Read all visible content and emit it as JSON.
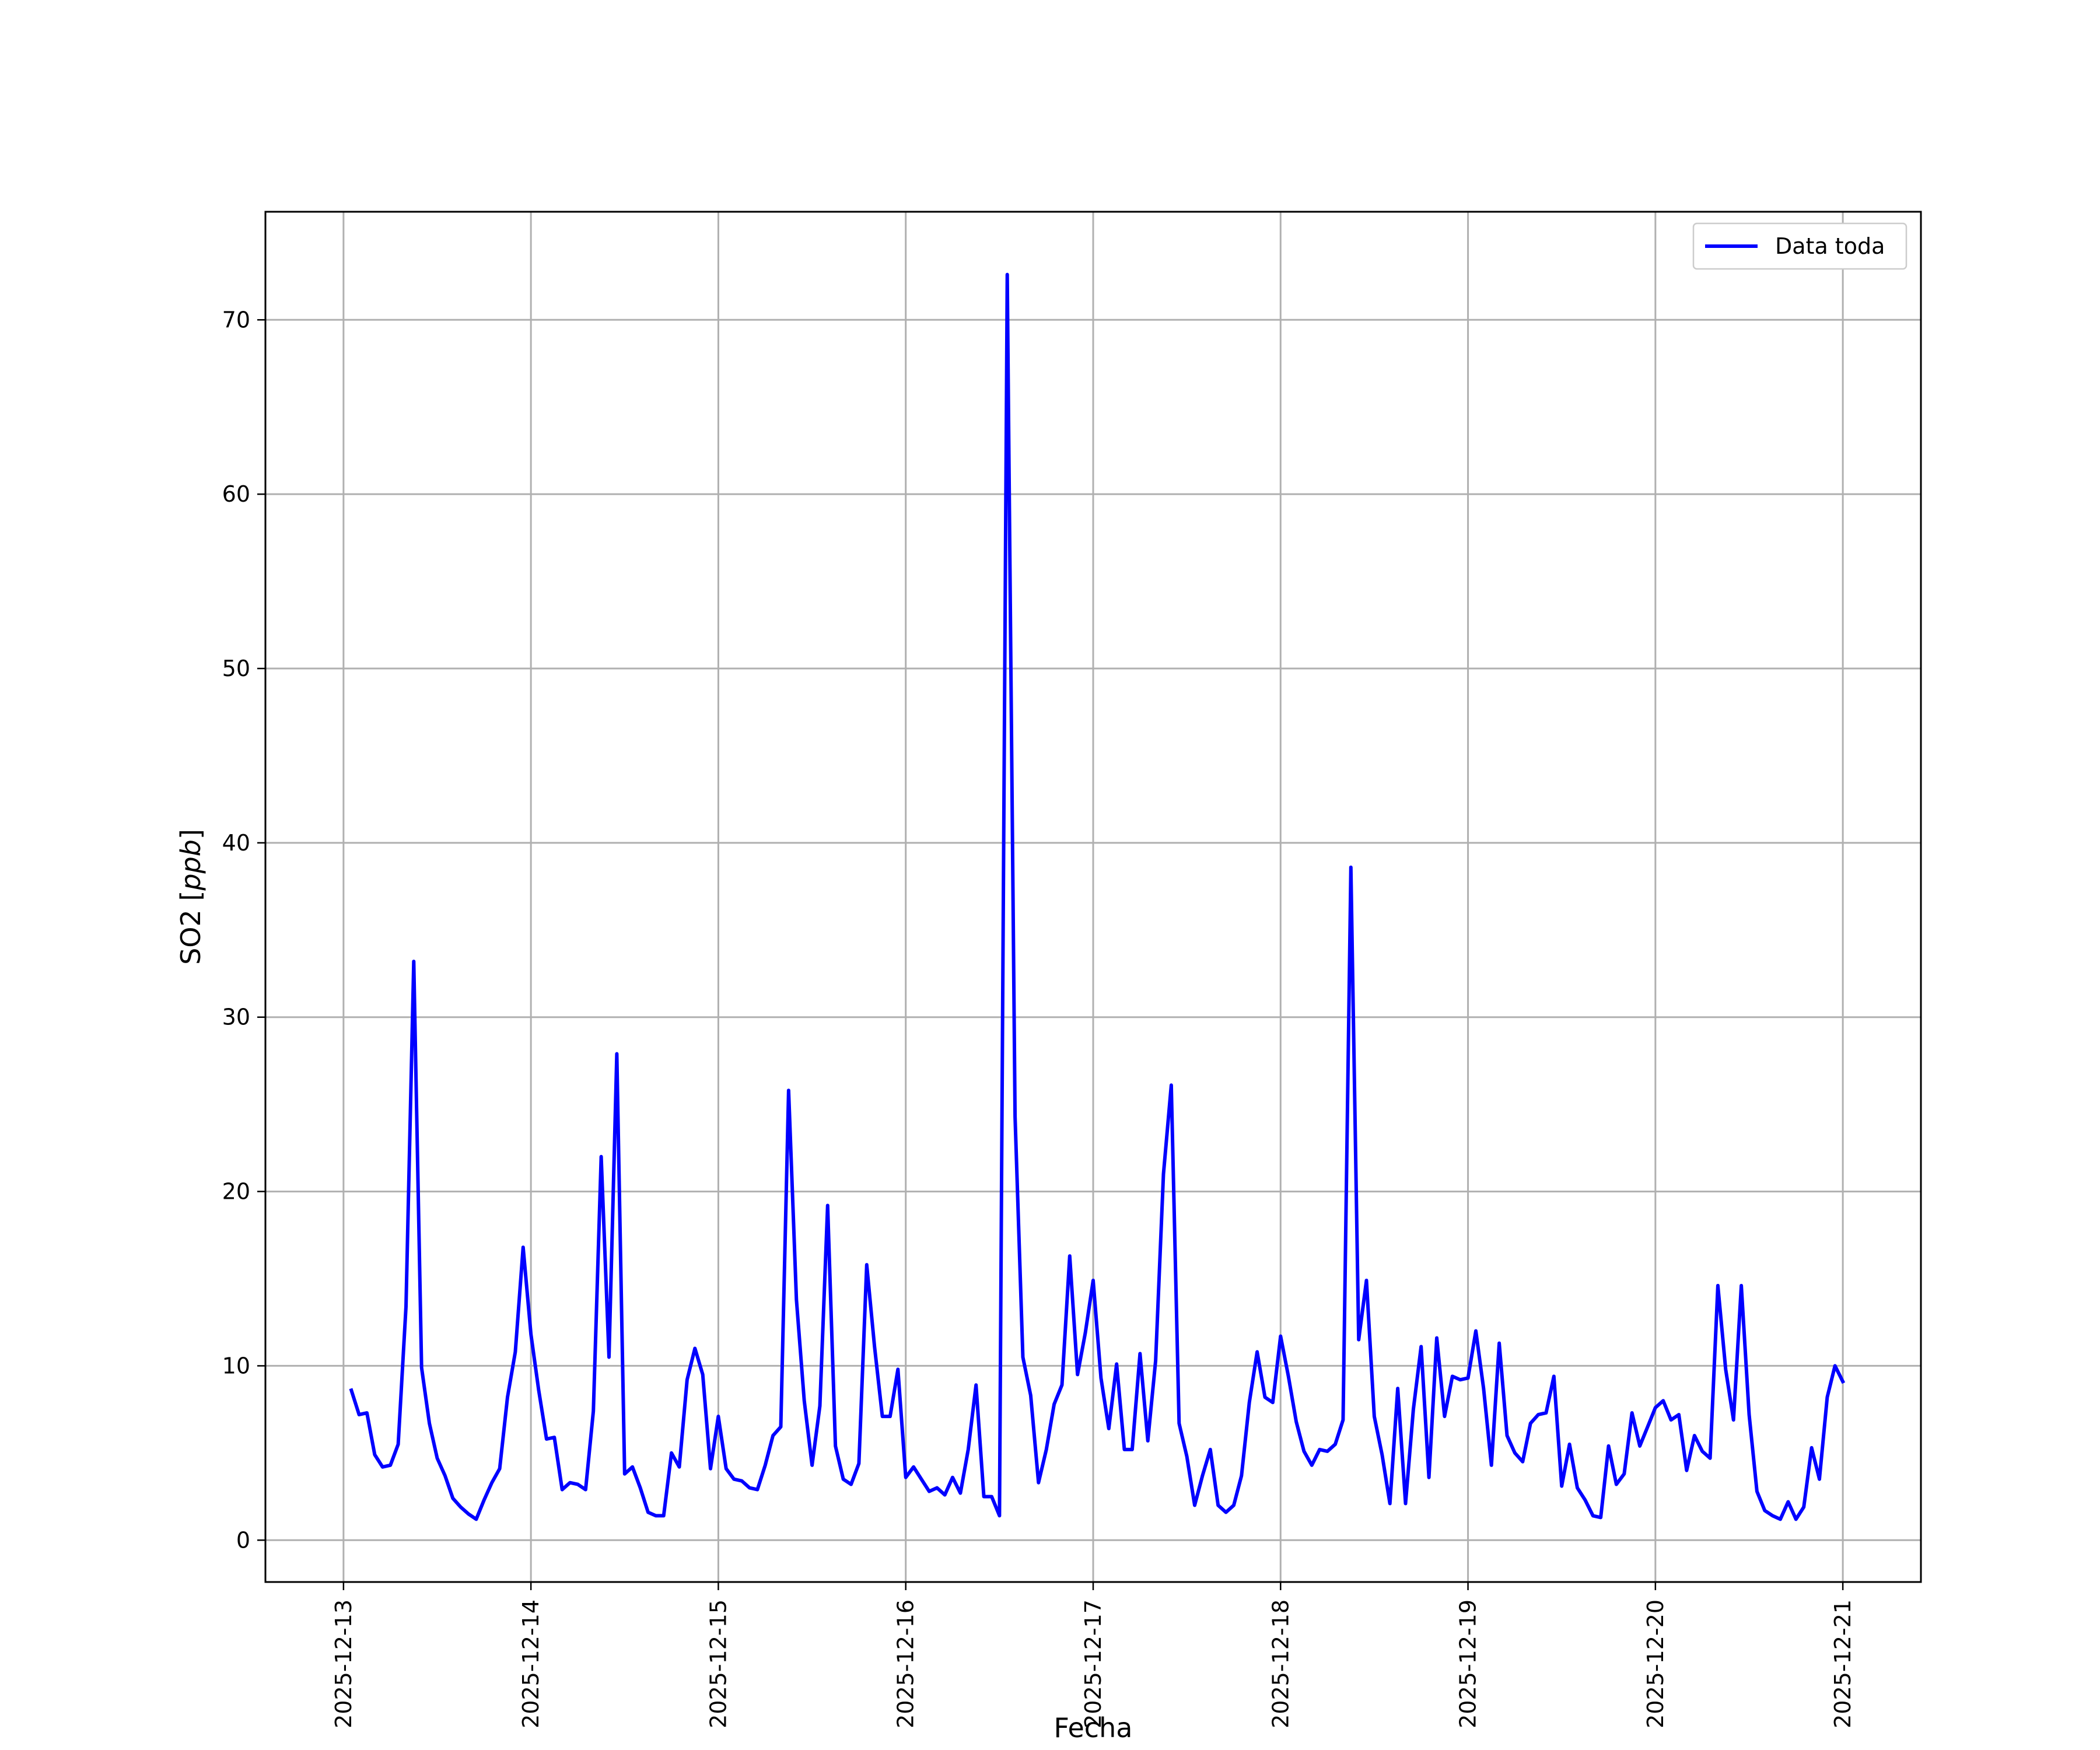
{
  "chart_data": {
    "type": "line",
    "xlabel": "Fecha",
    "ylabel": "SO2 [ppb]",
    "ylabel_main": "SO2 [",
    "ylabel_unit": "ppb",
    "ylabel_close": "]",
    "xlim": [
      "2025-12-12 14:00",
      "2025-12-21 10:00"
    ],
    "ylim": [
      -2.4,
      76.2
    ],
    "grid": true,
    "legend_position": "top-right",
    "x_ticks": [
      "2025-12-13",
      "2025-12-14",
      "2025-12-15",
      "2025-12-16",
      "2025-12-17",
      "2025-12-18",
      "2025-12-19",
      "2025-12-20",
      "2025-12-21"
    ],
    "y_ticks": [
      0,
      10,
      20,
      30,
      40,
      50,
      60,
      70
    ],
    "colors": {
      "series": "#0000ff",
      "grid": "#b0b0b0"
    },
    "series": [
      {
        "name": "Data toda",
        "x": [
          "2025-12-13 01:00",
          "2025-12-13 02:00",
          "2025-12-13 03:00",
          "2025-12-13 04:00",
          "2025-12-13 05:00",
          "2025-12-13 06:00",
          "2025-12-13 07:00",
          "2025-12-13 08:00",
          "2025-12-13 09:00",
          "2025-12-13 10:00",
          "2025-12-13 11:00",
          "2025-12-13 12:00",
          "2025-12-13 13:00",
          "2025-12-13 14:00",
          "2025-12-13 15:00",
          "2025-12-13 16:00",
          "2025-12-13 17:00",
          "2025-12-13 18:00",
          "2025-12-13 19:00",
          "2025-12-13 20:00",
          "2025-12-13 21:00",
          "2025-12-13 22:00",
          "2025-12-13 23:00",
          "2025-12-14 00:00",
          "2025-12-14 01:00",
          "2025-12-14 02:00",
          "2025-12-14 03:00",
          "2025-12-14 04:00",
          "2025-12-14 05:00",
          "2025-12-14 06:00",
          "2025-12-14 07:00",
          "2025-12-14 08:00",
          "2025-12-14 09:00",
          "2025-12-14 10:00",
          "2025-12-14 11:00",
          "2025-12-14 12:00",
          "2025-12-14 13:00",
          "2025-12-14 14:00",
          "2025-12-14 15:00",
          "2025-12-14 16:00",
          "2025-12-14 17:00",
          "2025-12-14 18:00",
          "2025-12-14 19:00",
          "2025-12-14 20:00",
          "2025-12-14 21:00",
          "2025-12-14 22:00",
          "2025-12-14 23:00",
          "2025-12-15 00:00",
          "2025-12-15 01:00",
          "2025-12-15 02:00",
          "2025-12-15 03:00",
          "2025-12-15 04:00",
          "2025-12-15 05:00",
          "2025-12-15 06:00",
          "2025-12-15 07:00",
          "2025-12-15 08:00",
          "2025-12-15 09:00",
          "2025-12-15 10:00",
          "2025-12-15 11:00",
          "2025-12-15 12:00",
          "2025-12-15 13:00",
          "2025-12-15 14:00",
          "2025-12-15 15:00",
          "2025-12-15 16:00",
          "2025-12-15 17:00",
          "2025-12-15 18:00",
          "2025-12-15 19:00",
          "2025-12-15 20:00",
          "2025-12-15 21:00",
          "2025-12-15 22:00",
          "2025-12-15 23:00",
          "2025-12-16 00:00",
          "2025-12-16 01:00",
          "2025-12-16 02:00",
          "2025-12-16 03:00",
          "2025-12-16 04:00",
          "2025-12-16 05:00",
          "2025-12-16 06:00",
          "2025-12-16 07:00",
          "2025-12-16 08:00",
          "2025-12-16 09:00",
          "2025-12-16 10:00",
          "2025-12-16 11:00",
          "2025-12-16 12:00",
          "2025-12-16 13:00",
          "2025-12-16 14:00",
          "2025-12-16 15:00",
          "2025-12-16 16:00",
          "2025-12-16 17:00",
          "2025-12-16 18:00",
          "2025-12-16 19:00",
          "2025-12-16 20:00",
          "2025-12-16 21:00",
          "2025-12-16 22:00",
          "2025-12-16 23:00",
          "2025-12-17 00:00",
          "2025-12-17 01:00",
          "2025-12-17 02:00",
          "2025-12-17 03:00",
          "2025-12-17 04:00",
          "2025-12-17 05:00",
          "2025-12-17 06:00",
          "2025-12-17 07:00",
          "2025-12-17 08:00",
          "2025-12-17 09:00",
          "2025-12-17 10:00",
          "2025-12-17 11:00",
          "2025-12-17 12:00",
          "2025-12-17 13:00",
          "2025-12-17 14:00",
          "2025-12-17 15:00",
          "2025-12-17 16:00",
          "2025-12-17 17:00",
          "2025-12-17 18:00",
          "2025-12-17 19:00",
          "2025-12-17 20:00",
          "2025-12-17 21:00",
          "2025-12-17 22:00",
          "2025-12-17 23:00",
          "2025-12-18 00:00",
          "2025-12-18 01:00",
          "2025-12-18 02:00",
          "2025-12-18 03:00",
          "2025-12-18 04:00",
          "2025-12-18 05:00",
          "2025-12-18 06:00",
          "2025-12-18 07:00",
          "2025-12-18 08:00",
          "2025-12-18 09:00",
          "2025-12-18 10:00",
          "2025-12-18 11:00",
          "2025-12-18 12:00",
          "2025-12-18 13:00",
          "2025-12-18 14:00",
          "2025-12-18 15:00",
          "2025-12-18 16:00",
          "2025-12-18 17:00",
          "2025-12-18 18:00",
          "2025-12-18 19:00",
          "2025-12-18 20:00",
          "2025-12-18 21:00",
          "2025-12-18 22:00",
          "2025-12-18 23:00",
          "2025-12-19 00:00",
          "2025-12-19 01:00",
          "2025-12-19 02:00",
          "2025-12-19 03:00",
          "2025-12-19 04:00",
          "2025-12-19 05:00",
          "2025-12-19 06:00",
          "2025-12-19 07:00",
          "2025-12-19 08:00",
          "2025-12-19 09:00",
          "2025-12-19 10:00",
          "2025-12-19 11:00",
          "2025-12-19 12:00",
          "2025-12-19 13:00",
          "2025-12-19 14:00",
          "2025-12-19 15:00",
          "2025-12-19 16:00",
          "2025-12-19 17:00",
          "2025-12-19 18:00",
          "2025-12-19 19:00",
          "2025-12-19 20:00",
          "2025-12-19 21:00",
          "2025-12-19 22:00",
          "2025-12-19 23:00",
          "2025-12-20 00:00",
          "2025-12-20 01:00",
          "2025-12-20 02:00",
          "2025-12-20 03:00",
          "2025-12-20 04:00",
          "2025-12-20 05:00",
          "2025-12-20 06:00",
          "2025-12-20 07:00",
          "2025-12-20 08:00",
          "2025-12-20 09:00",
          "2025-12-20 10:00",
          "2025-12-20 11:00",
          "2025-12-20 12:00",
          "2025-12-20 13:00",
          "2025-12-20 14:00",
          "2025-12-20 15:00",
          "2025-12-20 16:00",
          "2025-12-20 17:00",
          "2025-12-20 18:00",
          "2025-12-20 19:00",
          "2025-12-20 20:00",
          "2025-12-20 21:00",
          "2025-12-20 22:00",
          "2025-12-20 23:00",
          "2025-12-21 00:00"
        ],
        "y": [
          8.6,
          7.2,
          7.3,
          4.9,
          4.2,
          4.3,
          5.5,
          13.4,
          33.2,
          9.9,
          6.7,
          4.7,
          3.7,
          2.4,
          1.9,
          1.5,
          1.2,
          2.3,
          3.3,
          4.1,
          8.2,
          10.8,
          16.8,
          11.8,
          8.6,
          5.8,
          5.9,
          2.9,
          3.3,
          3.2,
          2.9,
          7.4,
          22.0,
          10.5,
          27.9,
          3.8,
          4.2,
          3.0,
          1.6,
          1.4,
          1.4,
          5.0,
          4.2,
          9.2,
          11.0,
          9.5,
          4.1,
          7.1,
          4.1,
          3.5,
          3.4,
          3.0,
          2.9,
          4.3,
          6.0,
          6.5,
          25.8,
          13.8,
          8.0,
          4.3,
          7.7,
          19.2,
          5.4,
          3.5,
          3.2,
          4.4,
          15.8,
          11.1,
          7.1,
          7.1,
          9.8,
          3.6,
          4.2,
          3.5,
          2.8,
          3.0,
          2.6,
          3.6,
          2.7,
          5.2,
          8.9,
          2.5,
          2.5,
          1.4,
          72.6,
          24.3,
          10.5,
          8.3,
          3.3,
          5.2,
          7.8,
          8.9,
          16.3,
          9.5,
          11.9,
          14.9,
          9.3,
          6.4,
          10.1,
          5.2,
          5.2,
          10.7,
          5.7,
          10.3,
          21.0,
          26.1,
          6.7,
          4.8,
          2.0,
          3.7,
          5.2,
          2.0,
          1.6,
          2.0,
          3.7,
          7.9,
          10.8,
          8.2,
          7.9,
          11.7,
          9.4,
          6.8,
          5.1,
          4.3,
          5.2,
          5.1,
          5.5,
          6.9,
          38.6,
          11.5,
          14.9,
          7.1,
          4.9,
          2.1,
          8.7,
          2.1,
          7.5,
          11.1,
          3.6,
          11.6,
          7.1,
          9.4,
          9.2,
          9.3,
          12.0,
          8.7,
          4.3,
          11.3,
          6.0,
          5.0,
          4.5,
          6.7,
          7.2,
          7.3,
          9.4,
          3.1,
          5.5,
          3.0,
          2.3,
          1.4,
          1.3,
          5.4,
          3.2,
          3.8,
          7.3,
          5.4,
          6.5,
          7.6,
          8.0,
          6.9,
          7.2,
          4.0,
          6.0,
          5.1,
          4.7,
          14.6,
          9.8,
          6.9,
          14.6,
          7.2,
          2.8,
          1.7,
          1.4,
          1.2,
          2.2,
          1.2,
          1.9,
          5.3,
          3.5,
          8.2,
          10.0,
          9.1
        ]
      }
    ]
  }
}
